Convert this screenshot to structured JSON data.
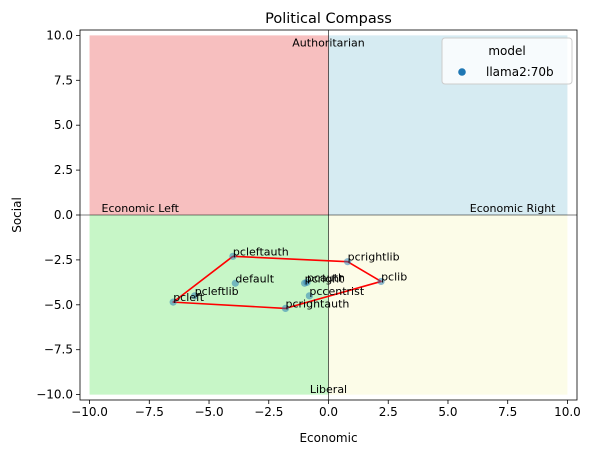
{
  "chart_data": {
    "type": "scatter",
    "title": "Political Compass",
    "xlabel": "Economic",
    "ylabel": "Social",
    "xlim": [
      -10.4,
      10.4
    ],
    "ylim": [
      -10.3,
      10.3
    ],
    "xticks": [
      -10,
      -7.5,
      -5,
      -2.5,
      0,
      2.5,
      5,
      7.5,
      10
    ],
    "yticks": [
      -10,
      -7.5,
      -5,
      -2.5,
      0,
      2.5,
      5,
      7.5,
      10
    ],
    "xtick_labels": [
      "−10.0",
      "−7.5",
      "−5.0",
      "−2.5",
      "0.0",
      "2.5",
      "5.0",
      "7.5",
      "10.0"
    ],
    "ytick_labels": [
      "−10.0",
      "−7.5",
      "−5.0",
      "−2.5",
      "0.0",
      "2.5",
      "5.0",
      "7.5",
      "10.0"
    ],
    "grid": false,
    "quadrants": [
      {
        "x": [
          -10,
          0
        ],
        "y": [
          0,
          10
        ],
        "color": "#f08080"
      },
      {
        "x": [
          0,
          10
        ],
        "y": [
          0,
          10
        ],
        "color": "#add8e6"
      },
      {
        "x": [
          -10,
          0
        ],
        "y": [
          -10,
          0
        ],
        "color": "#90ee90"
      },
      {
        "x": [
          0,
          10
        ],
        "y": [
          -10,
          0
        ],
        "color": "#fafad2"
      }
    ],
    "quadrant_alpha": 0.5,
    "quadrant_labels": [
      {
        "text": "Authoritarian",
        "x": 0,
        "y": 9.6,
        "anchor": "middle"
      },
      {
        "text": "Liberal",
        "x": 0,
        "y": -9.7,
        "anchor": "middle"
      },
      {
        "text": "Economic Left",
        "x": -9.5,
        "y": 0.4,
        "anchor": "start"
      },
      {
        "text": "Economic Right",
        "x": 9.5,
        "y": 0.4,
        "anchor": "end"
      }
    ],
    "legend": {
      "title": "model",
      "placement": "top-right",
      "entries": [
        {
          "name": "llama2:70b",
          "color": "#1f77b4"
        }
      ]
    },
    "point_color": "#1f77b4",
    "point_alpha": 0.5,
    "points": [
      {
        "label": "pcleftauth",
        "x": -4.0,
        "y": -2.3
      },
      {
        "label": "default",
        "x": -3.9,
        "y": -3.8
      },
      {
        "label": "pcright",
        "x": -1.0,
        "y": -3.8
      },
      {
        "label": "pcauth",
        "x": -0.9,
        "y": -3.75
      },
      {
        "label": "pcrightlib",
        "x": 0.8,
        "y": -2.6
      },
      {
        "label": "pclib",
        "x": 2.2,
        "y": -3.7
      },
      {
        "label": "pccentrist",
        "x": -0.8,
        "y": -4.5
      },
      {
        "label": "pcrightauth",
        "x": -1.8,
        "y": -5.2
      },
      {
        "label": "pcleftlib",
        "x": -5.6,
        "y": -4.5
      },
      {
        "label": "pcleft",
        "x": -6.5,
        "y": -4.85
      }
    ],
    "hull": {
      "color": "#ff0000",
      "points": [
        [
          -4.0,
          -2.3
        ],
        [
          0.8,
          -2.6
        ],
        [
          2.2,
          -3.7
        ],
        [
          -1.8,
          -5.2
        ],
        [
          -6.5,
          -4.85
        ],
        [
          -4.0,
          -2.3
        ]
      ]
    }
  }
}
